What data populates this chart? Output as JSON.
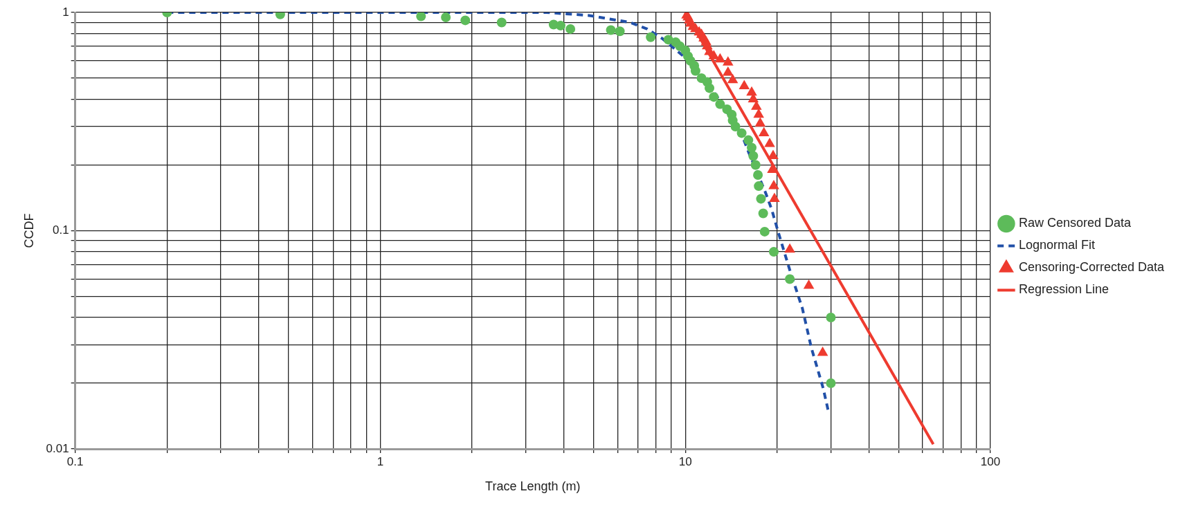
{
  "chart_data": {
    "type": "scatter",
    "xlabel": "Trace Length (m)",
    "ylabel": "CCDF",
    "log": "xy",
    "grid": true,
    "legend": "right",
    "xlim": [
      0.1,
      100
    ],
    "ylim": [
      0.01,
      1
    ],
    "xticks": [
      0.1,
      {
        "value": 0.2,
        "label": null
      },
      {
        "value": 0.3,
        "label": null
      },
      {
        "value": 0.4,
        "label": null
      },
      {
        "value": 0.5,
        "label": null
      },
      {
        "value": 0.6,
        "label": null
      },
      {
        "value": 0.7,
        "label": null
      },
      {
        "value": 0.8,
        "label": null
      },
      {
        "value": 0.9,
        "label": null
      },
      1,
      {
        "value": 2,
        "label": null
      },
      {
        "value": 3,
        "label": null
      },
      {
        "value": 4,
        "label": null
      },
      {
        "value": 5,
        "label": null
      },
      {
        "value": 6,
        "label": null
      },
      {
        "value": 7,
        "label": null
      },
      {
        "value": 8,
        "label": null
      },
      {
        "value": 9,
        "label": null
      },
      10,
      {
        "value": 20,
        "label": null
      },
      {
        "value": 30,
        "label": null
      },
      {
        "value": 40,
        "label": null
      },
      {
        "value": 50,
        "label": null
      },
      {
        "value": 60,
        "label": null
      },
      {
        "value": 70,
        "label": null
      },
      {
        "value": 80,
        "label": null
      },
      {
        "value": 90,
        "label": null
      },
      100
    ],
    "yticks": [
      0.01,
      {
        "value": 0.02,
        "label": null
      },
      {
        "value": 0.03,
        "label": null
      },
      {
        "value": 0.04,
        "label": null
      },
      {
        "value": 0.05,
        "label": null
      },
      {
        "value": 0.06,
        "label": null
      },
      {
        "value": 0.07,
        "label": null
      },
      {
        "value": 0.08,
        "label": null
      },
      {
        "value": 0.09,
        "label": null
      },
      0.1,
      {
        "value": 0.2,
        "label": null
      },
      {
        "value": 0.3,
        "label": null
      },
      {
        "value": 0.4,
        "label": null
      },
      {
        "value": 0.5,
        "label": null
      },
      {
        "value": 0.6,
        "label": null
      },
      {
        "value": 0.7,
        "label": null
      },
      {
        "value": 0.8,
        "label": null
      },
      {
        "value": 0.9,
        "label": null
      },
      1
    ],
    "series": [
      {
        "name": "Raw Censored Data",
        "marker": "circle",
        "color": "#5dbb5a",
        "x": [
          0.2,
          0.47,
          1.36,
          1.64,
          1.9,
          2.5,
          3.7,
          3.9,
          4.2,
          5.7,
          6.1,
          7.7,
          8.8,
          9.3,
          9.6,
          10.0,
          10.2,
          10.4,
          10.7,
          10.8,
          11.3,
          11.8,
          12.0,
          12.4,
          13.0,
          13.7,
          14.2,
          14.3,
          14.6,
          15.3,
          16.1,
          16.5,
          16.7,
          17.0,
          17.3,
          17.4,
          17.7,
          18.0,
          18.2,
          19.5,
          22,
          30,
          30
        ],
        "values": [
          1.0,
          0.98,
          0.96,
          0.95,
          0.92,
          0.9,
          0.88,
          0.87,
          0.84,
          0.83,
          0.82,
          0.77,
          0.75,
          0.73,
          0.7,
          0.67,
          0.63,
          0.6,
          0.57,
          0.54,
          0.5,
          0.48,
          0.45,
          0.41,
          0.38,
          0.36,
          0.34,
          0.32,
          0.3,
          0.28,
          0.26,
          0.24,
          0.22,
          0.2,
          0.18,
          0.16,
          0.14,
          0.12,
          0.099,
          0.08,
          0.06,
          0.04,
          0.02
        ]
      },
      {
        "name": "Lognormal Fit",
        "type": "line",
        "marker": "none",
        "line_style": "dashed",
        "color": "#2150a8",
        "x": [
          0.2,
          3.5,
          4.8,
          6.6,
          7.5,
          8.4,
          10,
          12.6,
          15.4,
          16.1,
          18.3,
          19.2,
          20.1,
          22,
          24.2,
          25.9,
          28.3,
          29.4
        ],
        "values": [
          1,
          1,
          0.97,
          0.9,
          0.84,
          0.76,
          0.62,
          0.42,
          0.27,
          0.23,
          0.15,
          0.125,
          0.1,
          0.066,
          0.044,
          0.029,
          0.019,
          0.015
        ]
      },
      {
        "name": "Censoring-Corrected Data",
        "marker": "triangle",
        "color": "#ee3b2f",
        "x": [
          10.1,
          10.2,
          10.3,
          10.4,
          10.6,
          10.8,
          11.1,
          11.3,
          11.5,
          11.7,
          11.8,
          12.0,
          12.4,
          13.0,
          13.8,
          13.8,
          14.3,
          15.6,
          16.5,
          16.7,
          17.1,
          17.4,
          17.6,
          18.1,
          18.9,
          19.4,
          19.3,
          19.5,
          19.6,
          22.0,
          25.4,
          28.2
        ],
        "values": [
          0.97,
          0.95,
          0.92,
          0.89,
          0.86,
          0.84,
          0.81,
          0.79,
          0.76,
          0.73,
          0.7,
          0.66,
          0.63,
          0.61,
          0.59,
          0.53,
          0.49,
          0.46,
          0.43,
          0.4,
          0.37,
          0.34,
          0.31,
          0.28,
          0.25,
          0.22,
          0.19,
          0.16,
          0.14,
          0.082,
          0.056,
          0.0276
        ]
      },
      {
        "name": "Regression Line",
        "type": "line",
        "marker": "none",
        "line_style": "solid",
        "color": "#ee3b2f",
        "x": [
          10,
          65
        ],
        "values": [
          1,
          0.0105
        ]
      }
    ]
  }
}
